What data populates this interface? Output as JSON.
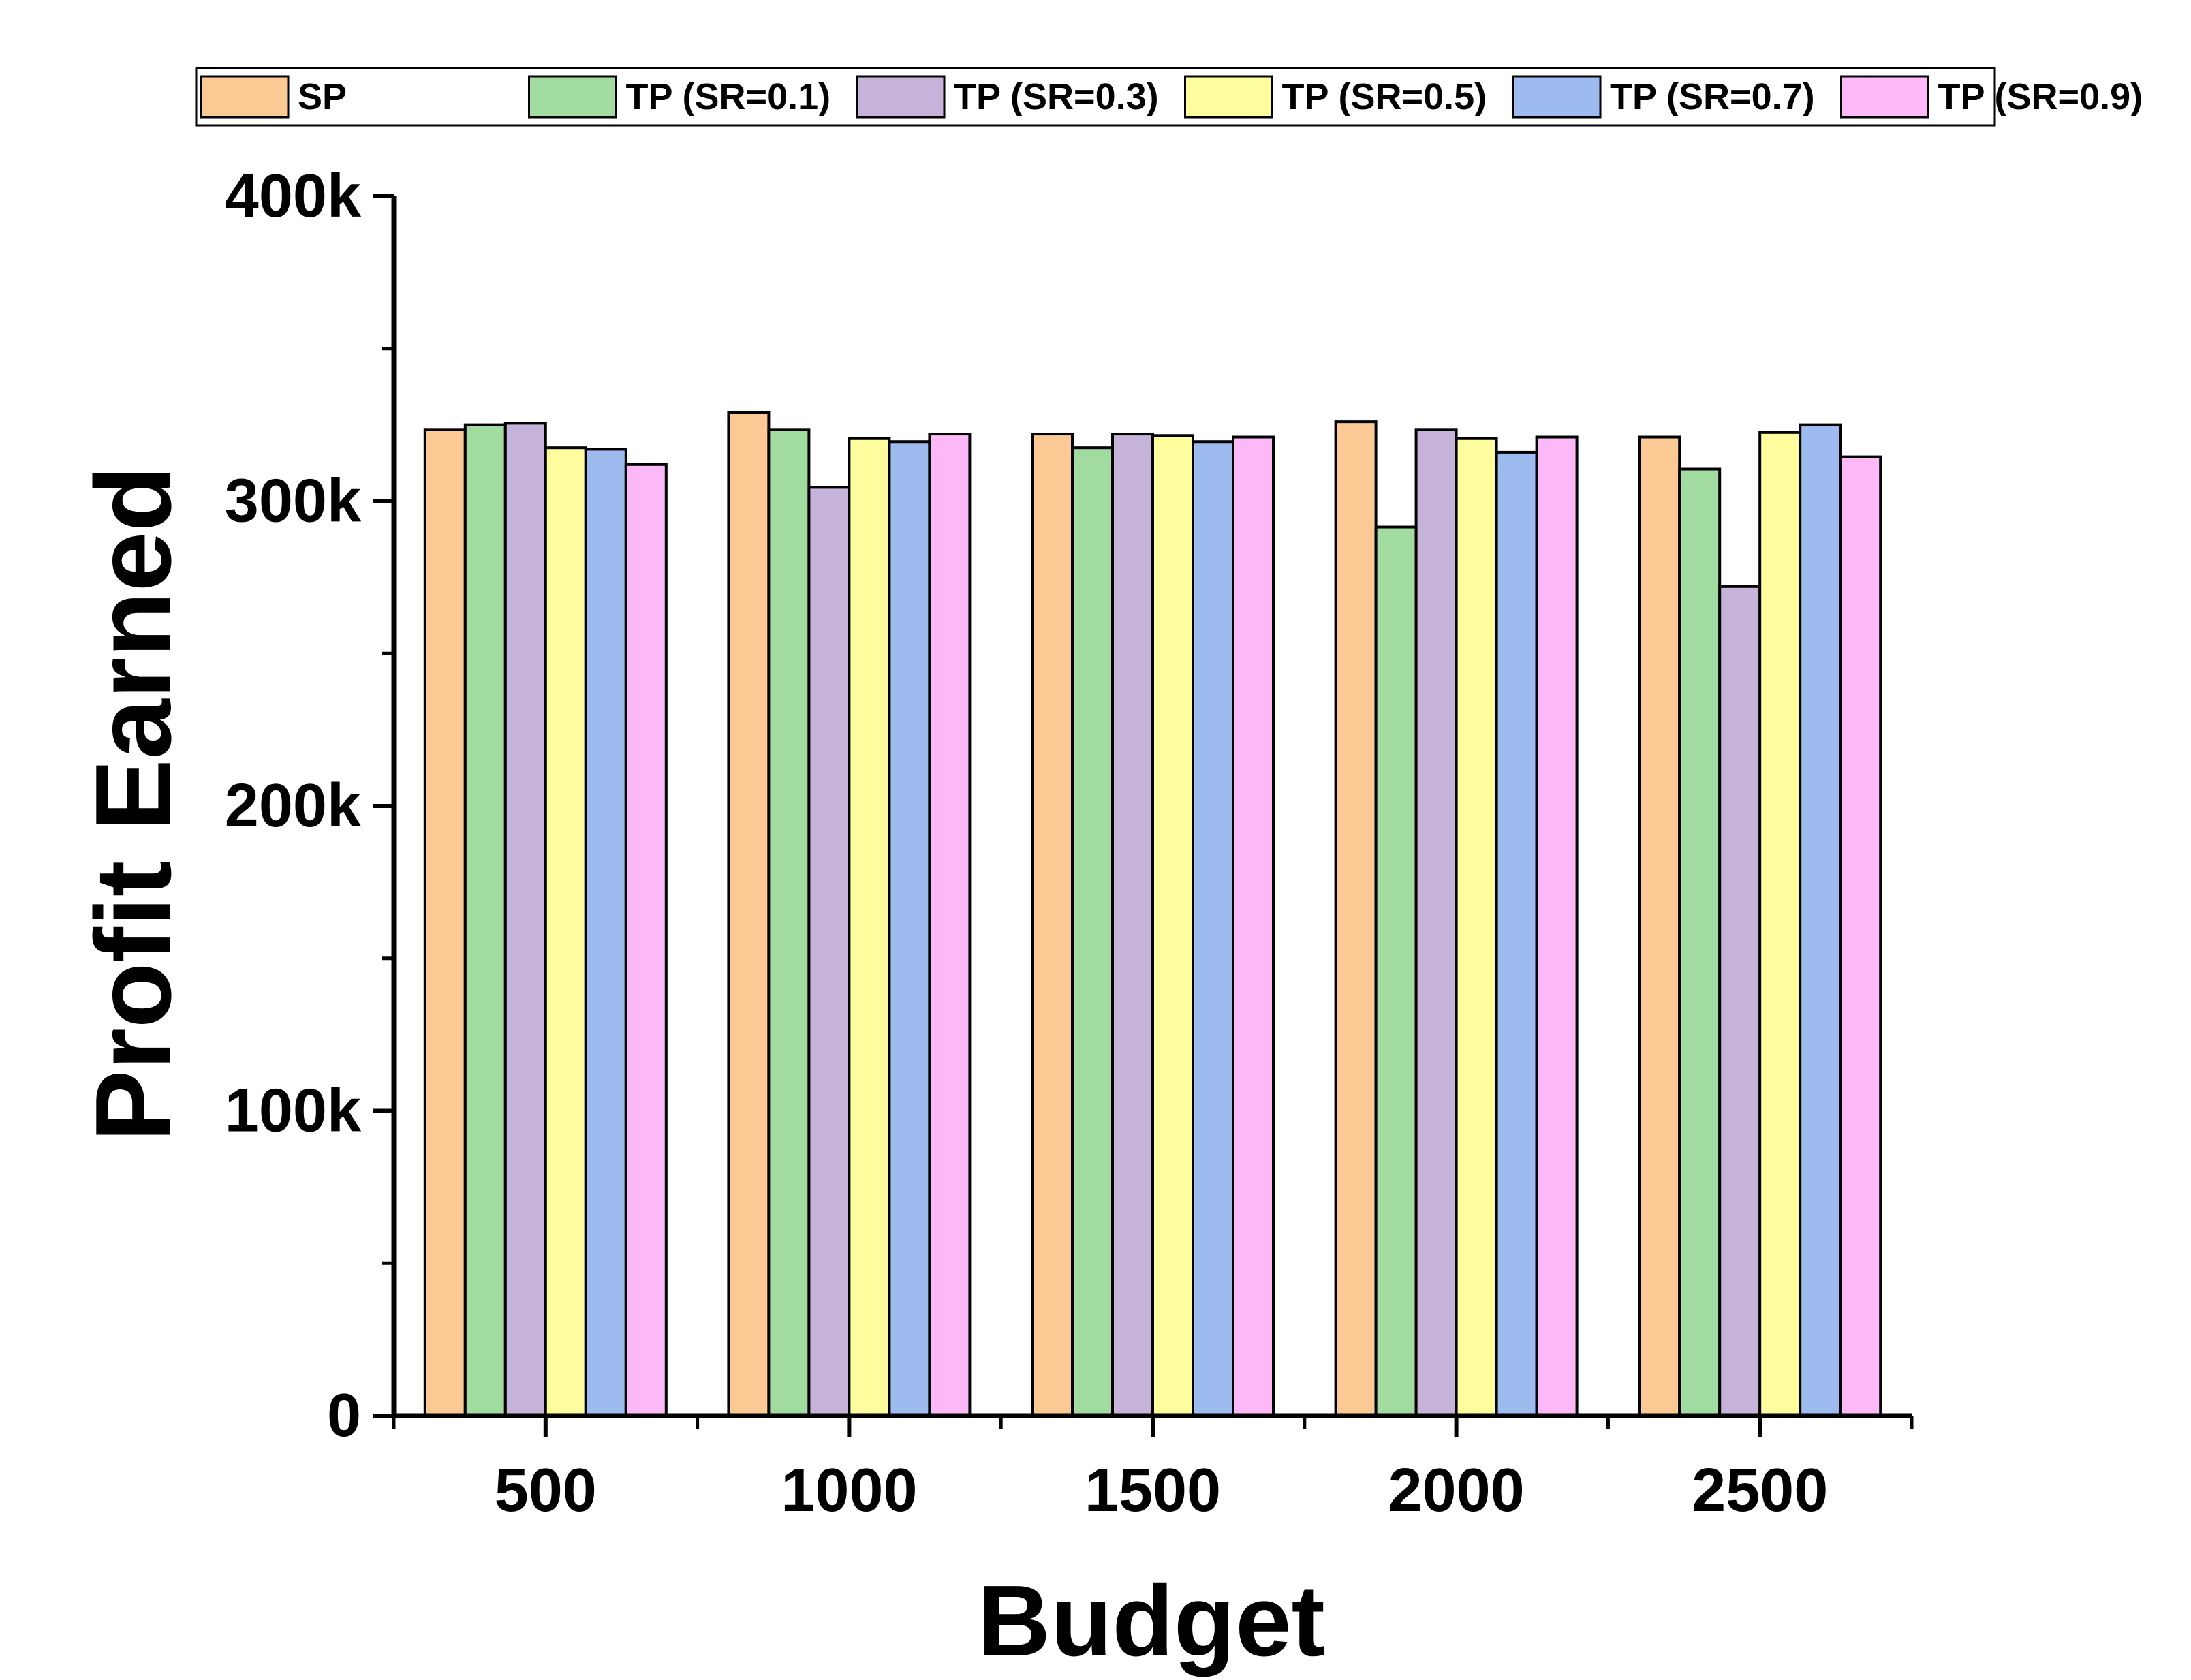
{
  "chart_data": {
    "type": "bar",
    "title": "",
    "xlabel": "Budget",
    "ylabel": "Profit Earned",
    "categories": [
      "500",
      "1000",
      "1500",
      "2000",
      "2500"
    ],
    "ylim": [
      0,
      400000
    ],
    "yticks": [
      {
        "value": 0,
        "label": "0"
      },
      {
        "value": 100000,
        "label": "100k"
      },
      {
        "value": 200000,
        "label": "200k"
      },
      {
        "value": 300000,
        "label": "300k"
      },
      {
        "value": 400000,
        "label": "400k"
      }
    ],
    "grid": false,
    "legend_position": "top",
    "series": [
      {
        "name": "SP",
        "color": "#fbc993",
        "values": [
          323500,
          329000,
          322000,
          326000,
          321000
        ]
      },
      {
        "name": "TP (SR=0.1)",
        "color": "#a1dba0",
        "values": [
          325000,
          323500,
          317500,
          291500,
          310500
        ]
      },
      {
        "name": "TP (SR=0.3)",
        "color": "#c6b3d9",
        "values": [
          325500,
          304500,
          322000,
          323500,
          272000
        ]
      },
      {
        "name": "TP (SR=0.5)",
        "color": "#fdfd9e",
        "values": [
          317500,
          320500,
          321500,
          320500,
          322500
        ]
      },
      {
        "name": "TP (SR=0.7)",
        "color": "#9ebbf0",
        "values": [
          317000,
          319500,
          319500,
          316000,
          325000
        ]
      },
      {
        "name": "TP (SR=0.9)",
        "color": "#fcb8f7",
        "values": [
          312000,
          322000,
          321000,
          321000,
          314500
        ]
      }
    ]
  }
}
